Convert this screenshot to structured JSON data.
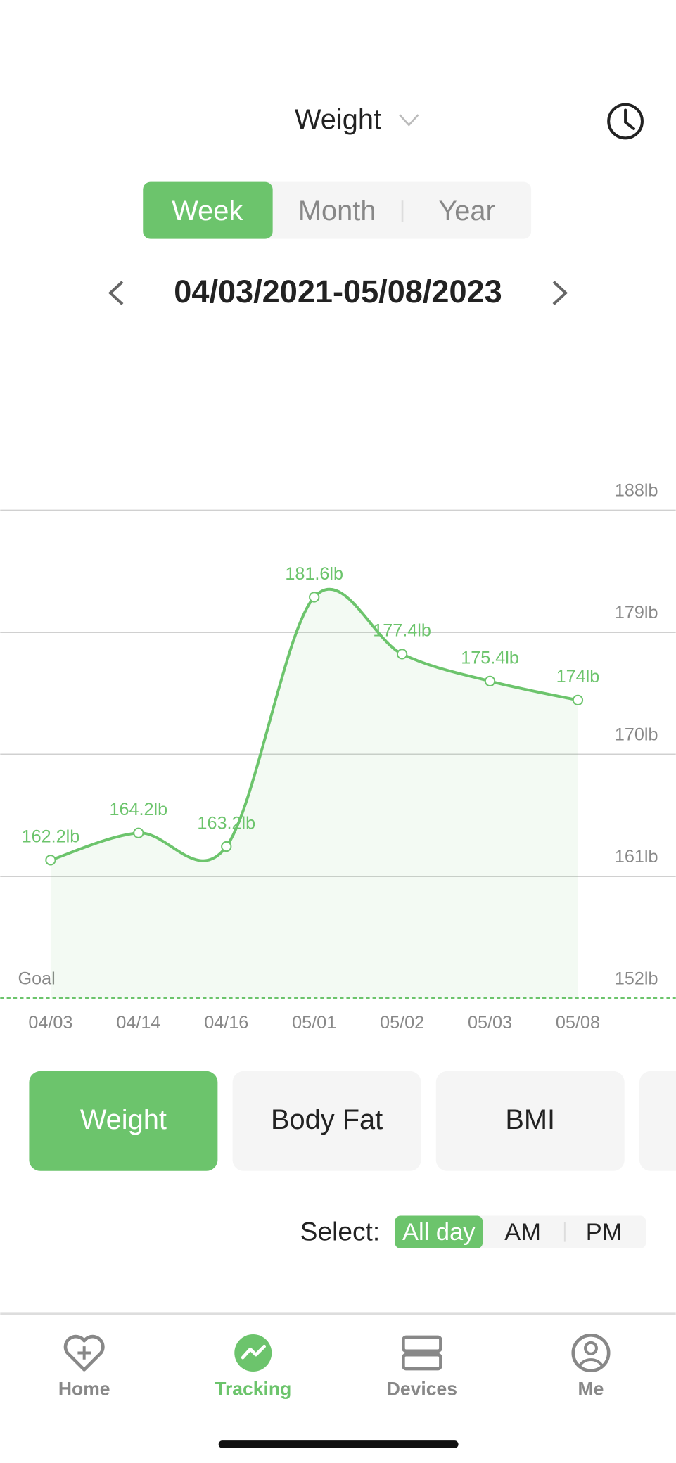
{
  "header": {
    "title": "Weight"
  },
  "period_tabs": [
    "Week",
    "Month",
    "Year"
  ],
  "date_range": "04/03/2021-05/08/2023",
  "chart_data": {
    "type": "line",
    "categories": [
      "04/03",
      "04/14",
      "04/16",
      "05/01",
      "05/02",
      "05/03",
      "05/08"
    ],
    "values": [
      162.2,
      164.2,
      163.2,
      181.6,
      177.4,
      175.4,
      174
    ],
    "value_labels": [
      "162.2lb",
      "164.2lb",
      "163.2lb",
      "181.6lb",
      "177.4lb",
      "175.4lb",
      "174lb"
    ],
    "color": "#6cc46c",
    "ylim": [
      152,
      188
    ],
    "yticks": [
      {
        "value": 152,
        "label": "152lb"
      },
      {
        "value": 161,
        "label": "161lb"
      },
      {
        "value": 170,
        "label": "170lb"
      },
      {
        "value": 179,
        "label": "179lb"
      },
      {
        "value": 188,
        "label": "188lb"
      }
    ],
    "grid": true,
    "goal_label": "Goal"
  },
  "metric_tabs": [
    "Weight",
    "Body Fat",
    "BMI"
  ],
  "select": {
    "label": "Select:",
    "options": [
      "All day",
      "AM",
      "PM"
    ]
  },
  "nav": [
    "Home",
    "Tracking",
    "Devices",
    "Me"
  ]
}
